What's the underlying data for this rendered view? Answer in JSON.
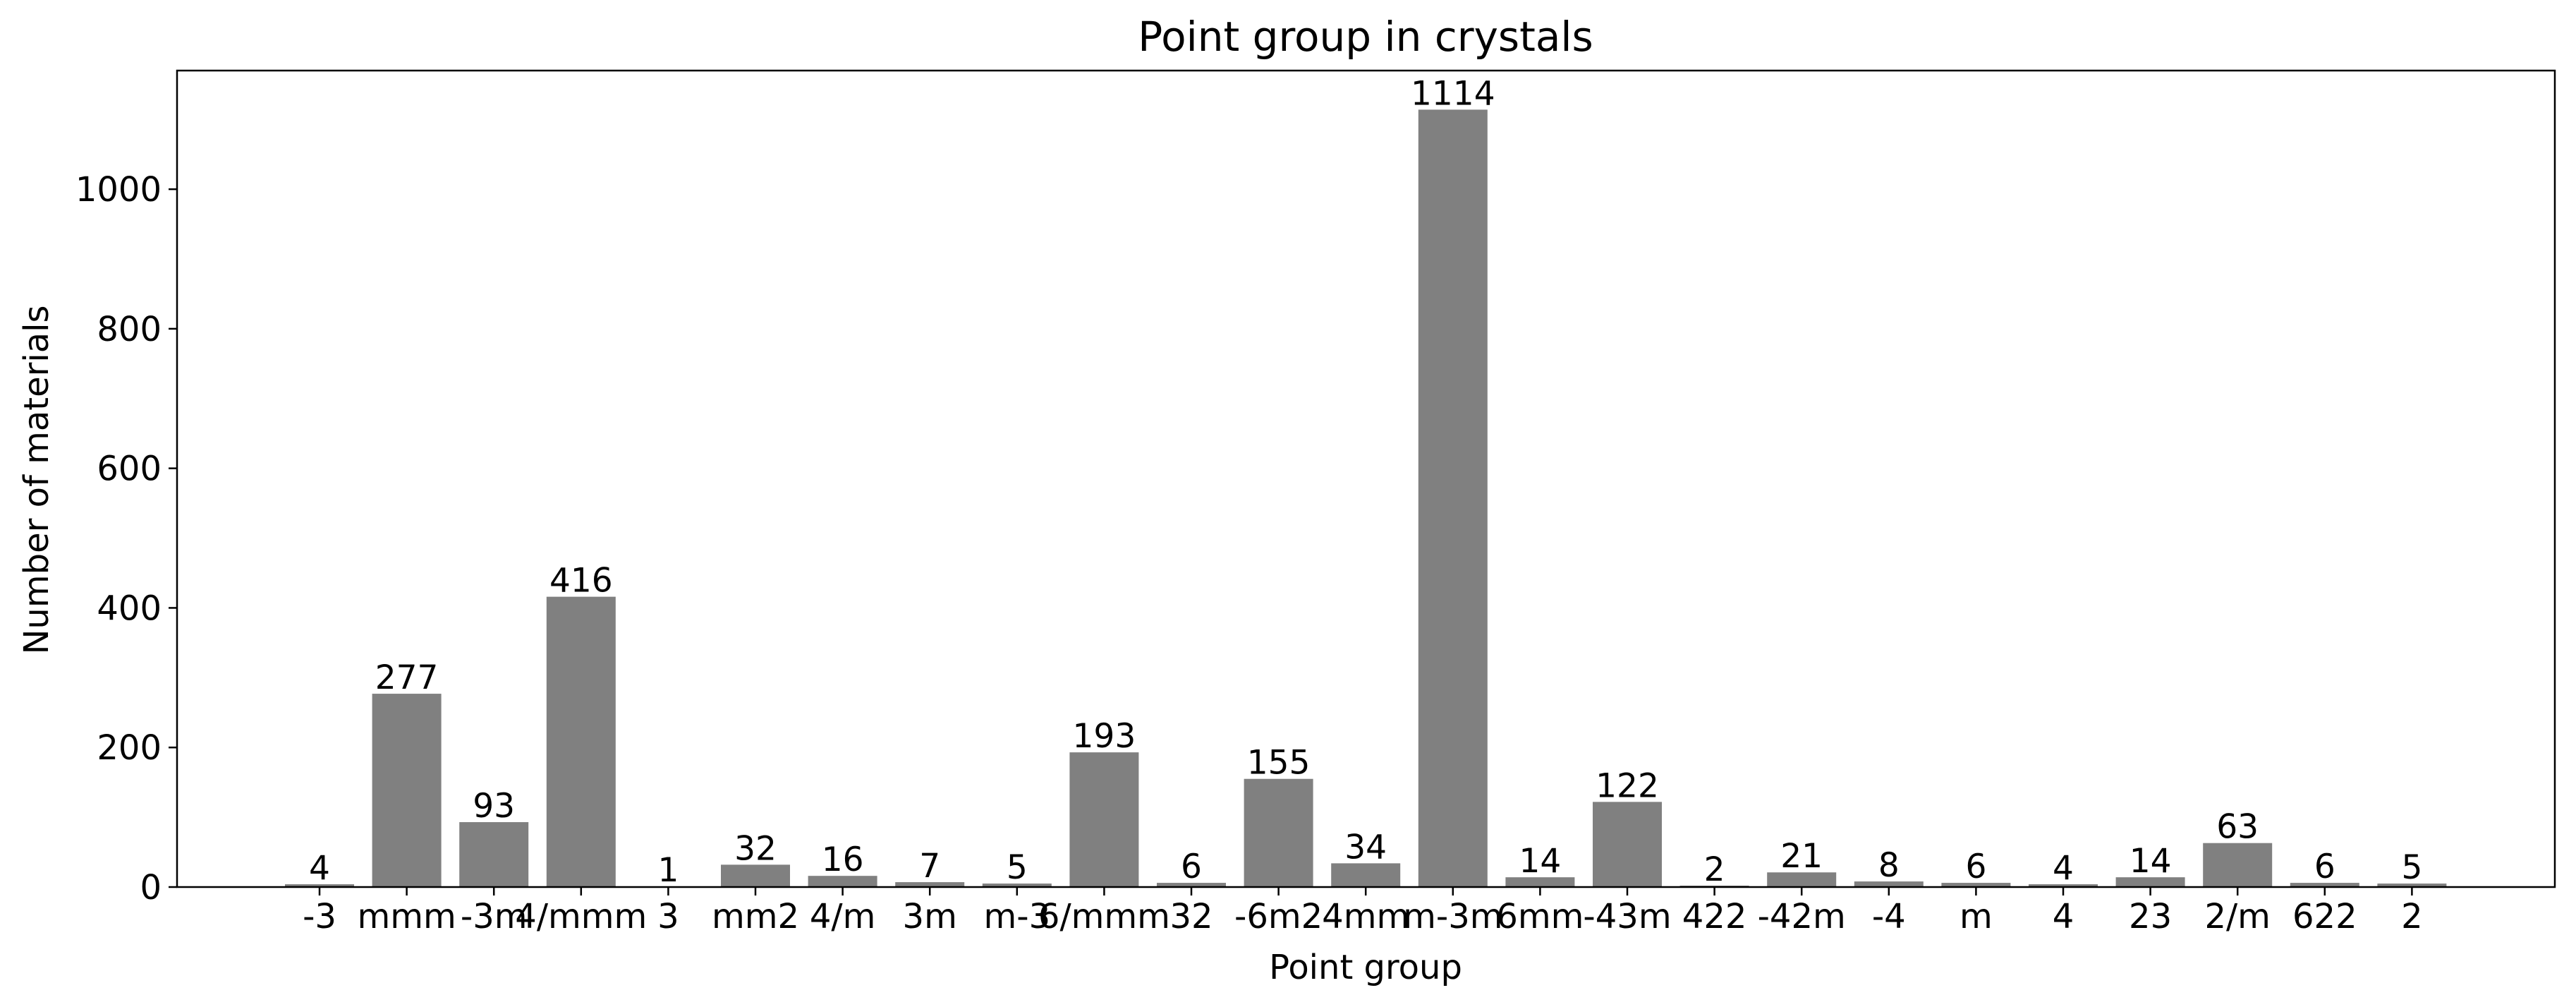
{
  "chart_data": {
    "type": "bar",
    "title": "Point group in crystals",
    "xlabel": "Point group",
    "ylabel": "Number of materials",
    "categories": [
      "-3",
      "mmm",
      "-3m",
      "4/mmm",
      "3",
      "mm2",
      "4/m",
      "3m",
      "m-3",
      "6/mmm",
      "32",
      "-6m2",
      "4mm",
      "m-3m",
      "6mm",
      "-43m",
      "422",
      "-42m",
      "-4",
      "m",
      "4",
      "23",
      "2/m",
      "622",
      "2"
    ],
    "values": [
      4,
      277,
      93,
      416,
      1,
      32,
      16,
      7,
      5,
      193,
      6,
      155,
      34,
      1114,
      14,
      122,
      2,
      21,
      8,
      6,
      4,
      14,
      63,
      6,
      5
    ],
    "ylim": [
      0,
      1170
    ],
    "yticks": [
      0,
      200,
      400,
      600,
      800,
      1000
    ],
    "grid": false,
    "bar_color": "#808080",
    "show_value_labels": true
  }
}
